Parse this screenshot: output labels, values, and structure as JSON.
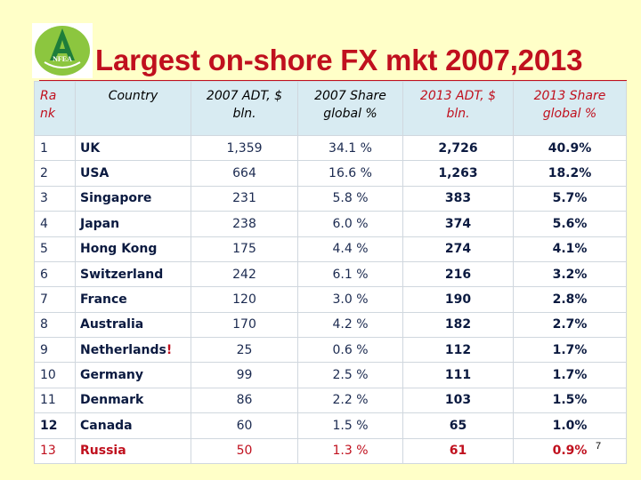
{
  "logo": {
    "text": "NFEA",
    "accent": "#1e7d3a",
    "bg": "#8cc63f"
  },
  "title": "Largest on-shore FX mkt 2007,2013",
  "colors": {
    "title": "#c0101e",
    "header_bg": "#d8ebf2",
    "page_bg": "#ffffc8"
  },
  "table": {
    "headers": {
      "rank": "Ra nk",
      "country": "Country",
      "adt2007": "2007 ADT, $ bln.",
      "share2007": "2007 Share global %",
      "adt2013": "2013 ADT, $ bln.",
      "share2013": "2013 Share global %"
    },
    "rows": [
      {
        "rank": "1",
        "country": "UK",
        "adt2007": "1,359",
        "share2007": "34.1 %",
        "adt2013": "2,726",
        "share2013": "40.9%"
      },
      {
        "rank": "2",
        "country": "USA",
        "adt2007": "664",
        "share2007": "16.6 %",
        "adt2013": "1,263",
        "share2013": "18.2%"
      },
      {
        "rank": "3",
        "country": "Singapore",
        "adt2007": "231",
        "share2007": "5.8 %",
        "adt2013": "383",
        "share2013": "5.7%"
      },
      {
        "rank": "4",
        "country": "Japan",
        "adt2007": "238",
        "share2007": "6.0 %",
        "adt2013": "374",
        "share2013": "5.6%"
      },
      {
        "rank": "5",
        "country": "Hong Kong",
        "adt2007": "175",
        "share2007": "4.4 %",
        "adt2013": "274",
        "share2013": "4.1%"
      },
      {
        "rank": "6",
        "country": "Switzerland",
        "adt2007": "242",
        "share2007": "6.1 %",
        "adt2013": "216",
        "share2013": "3.2%"
      },
      {
        "rank": "7",
        "country": "France",
        "adt2007": "120",
        "share2007": "3.0 %",
        "adt2013": "190",
        "share2013": "2.8%"
      },
      {
        "rank": "8",
        "country": "Australia",
        "adt2007": "170",
        "share2007": "4.2 %",
        "adt2013": "182",
        "share2013": "2.7%"
      },
      {
        "rank": "9",
        "country": "Netherlands",
        "country_mark": "!",
        "adt2007": "25",
        "share2007": "0.6 %",
        "adt2013": "112",
        "share2013": "1.7%"
      },
      {
        "rank": "10",
        "country": "Germany",
        "adt2007": "99",
        "share2007": "2.5 %",
        "adt2013": "111",
        "share2013": "1.7%"
      },
      {
        "rank": "11",
        "country": "Denmark",
        "adt2007": "86",
        "share2007": "2.2 %",
        "adt2013": "103",
        "share2013": "1.5%"
      },
      {
        "rank": "12",
        "country": "Canada",
        "adt2007": "60",
        "share2007": "1.5 %",
        "adt2013": "65",
        "share2013": "1.0%"
      },
      {
        "rank": "13",
        "country": "Russia",
        "adt2007": "50",
        "share2007": "1.3 %",
        "adt2013": "61",
        "share2013": "0.9%"
      }
    ]
  },
  "page_number": "7"
}
